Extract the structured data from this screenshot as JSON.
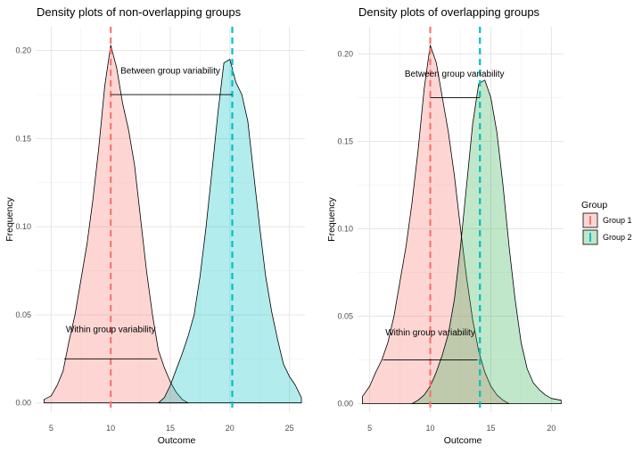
{
  "chart_data": [
    {
      "type": "area",
      "title": "Density plots of non-overlapping groups",
      "xlabel": "Outcome",
      "ylabel": "Frequency",
      "xlim": [
        3.7,
        26.3
      ],
      "ylim": [
        -0.0052,
        0.2135
      ],
      "xticks": [
        5,
        10,
        15,
        20,
        25
      ],
      "yticks": [
        0.0,
        0.05,
        0.1,
        0.15,
        0.2
      ],
      "ytick_labels": [
        "0.00",
        "0.05",
        "0.10",
        "0.15",
        "0.20"
      ],
      "xtick_labels": [
        "5",
        "10",
        "15",
        "20",
        "25"
      ],
      "grid": true,
      "series": [
        {
          "name": "Group 1",
          "color": "#F8766D",
          "points": [
            [
              4.4,
              0.002
            ],
            [
              5.0,
              0.004
            ],
            [
              5.5,
              0.01
            ],
            [
              6.0,
              0.018
            ],
            [
              6.5,
              0.035
            ],
            [
              7.0,
              0.05
            ],
            [
              7.5,
              0.07
            ],
            [
              8.0,
              0.09
            ],
            [
              8.5,
              0.115
            ],
            [
              9.0,
              0.145
            ],
            [
              9.5,
              0.18
            ],
            [
              10.0,
              0.203
            ],
            [
              10.5,
              0.19
            ],
            [
              11.0,
              0.17
            ],
            [
              11.5,
              0.155
            ],
            [
              12.0,
              0.135
            ],
            [
              12.5,
              0.105
            ],
            [
              13.0,
              0.075
            ],
            [
              13.5,
              0.05
            ],
            [
              14.0,
              0.03
            ],
            [
              14.5,
              0.02
            ],
            [
              15.0,
              0.012
            ],
            [
              15.5,
              0.006
            ],
            [
              16.0,
              0.002
            ],
            [
              16.5,
              0.0
            ]
          ]
        },
        {
          "name": "Group 2",
          "color": "#00BFC4",
          "points": [
            [
              14.0,
              0.0
            ],
            [
              14.5,
              0.003
            ],
            [
              15.0,
              0.01
            ],
            [
              15.5,
              0.019
            ],
            [
              16.0,
              0.028
            ],
            [
              16.5,
              0.038
            ],
            [
              17.0,
              0.05
            ],
            [
              17.5,
              0.072
            ],
            [
              18.0,
              0.1
            ],
            [
              18.5,
              0.132
            ],
            [
              19.0,
              0.165
            ],
            [
              19.5,
              0.193
            ],
            [
              20.0,
              0.195
            ],
            [
              20.5,
              0.182
            ],
            [
              21.0,
              0.175
            ],
            [
              21.5,
              0.16
            ],
            [
              22.0,
              0.13
            ],
            [
              22.5,
              0.1
            ],
            [
              23.0,
              0.072
            ],
            [
              23.5,
              0.052
            ],
            [
              24.0,
              0.036
            ],
            [
              24.5,
              0.022
            ],
            [
              25.0,
              0.015
            ],
            [
              25.5,
              0.01
            ],
            [
              26.0,
              0.003
            ]
          ]
        }
      ],
      "vlines": [
        {
          "x": 10.0,
          "color": "#F8766D"
        },
        {
          "x": 20.2,
          "color": "#00BFC4"
        }
      ],
      "segments": [
        {
          "x1": 10.0,
          "x2": 20.2,
          "y": 0.175
        },
        {
          "x1": 6.1,
          "x2": 13.9,
          "y": 0.025
        }
      ],
      "annotations": [
        {
          "text": "Between group variability",
          "x": 15.0,
          "y": 0.187
        },
        {
          "text": "Within group variability",
          "x": 10.0,
          "y": 0.04
        }
      ]
    },
    {
      "type": "area",
      "title": "Density plots of overlapping groups",
      "xlabel": "Outcome",
      "ylabel": "Frequency",
      "xlim": [
        4.0,
        21.0
      ],
      "ylim": [
        -0.0048,
        0.2155
      ],
      "xticks": [
        5,
        10,
        15,
        20
      ],
      "yticks": [
        0.0,
        0.05,
        0.1,
        0.15,
        0.2
      ],
      "ytick_labels": [
        "0.00",
        "0.05",
        "0.10",
        "0.15",
        "0.20"
      ],
      "xtick_labels": [
        "5",
        "10",
        "15",
        "20"
      ],
      "grid": true,
      "series": [
        {
          "name": "Group 1",
          "color": "#F8766D",
          "points": [
            [
              4.4,
              0.004
            ],
            [
              5.0,
              0.01
            ],
            [
              5.5,
              0.018
            ],
            [
              6.0,
              0.025
            ],
            [
              6.5,
              0.035
            ],
            [
              7.0,
              0.05
            ],
            [
              7.5,
              0.07
            ],
            [
              8.0,
              0.09
            ],
            [
              8.5,
              0.115
            ],
            [
              9.0,
              0.145
            ],
            [
              9.5,
              0.18
            ],
            [
              10.0,
              0.205
            ],
            [
              10.5,
              0.195
            ],
            [
              11.0,
              0.175
            ],
            [
              11.5,
              0.155
            ],
            [
              12.0,
              0.13
            ],
            [
              12.5,
              0.1
            ],
            [
              13.0,
              0.072
            ],
            [
              13.5,
              0.048
            ],
            [
              14.0,
              0.03
            ],
            [
              14.5,
              0.018
            ],
            [
              15.0,
              0.01
            ],
            [
              15.5,
              0.005
            ],
            [
              16.0,
              0.002
            ],
            [
              16.5,
              0.0
            ]
          ]
        },
        {
          "name": "Group 2",
          "color": "#2FB14F",
          "points": [
            [
              8.5,
              0.0
            ],
            [
              9.0,
              0.002
            ],
            [
              9.5,
              0.005
            ],
            [
              10.0,
              0.01
            ],
            [
              10.5,
              0.018
            ],
            [
              11.0,
              0.028
            ],
            [
              11.5,
              0.04
            ],
            [
              12.0,
              0.06
            ],
            [
              12.5,
              0.09
            ],
            [
              13.0,
              0.125
            ],
            [
              13.5,
              0.16
            ],
            [
              14.0,
              0.183
            ],
            [
              14.5,
              0.185
            ],
            [
              15.0,
              0.175
            ],
            [
              15.5,
              0.155
            ],
            [
              16.0,
              0.125
            ],
            [
              16.5,
              0.09
            ],
            [
              17.0,
              0.06
            ],
            [
              17.5,
              0.035
            ],
            [
              18.0,
              0.02
            ],
            [
              18.5,
              0.012
            ],
            [
              19.0,
              0.008
            ],
            [
              19.5,
              0.005
            ],
            [
              20.0,
              0.003
            ],
            [
              20.8,
              0.002
            ]
          ]
        }
      ],
      "vlines": [
        {
          "x": 10.0,
          "color": "#F8766D"
        },
        {
          "x": 14.1,
          "color": "#00BFC4"
        }
      ],
      "segments": [
        {
          "x1": 10.0,
          "x2": 14.1,
          "y": 0.175
        },
        {
          "x1": 6.1,
          "x2": 13.9,
          "y": 0.025
        }
      ],
      "annotations": [
        {
          "text": "Between group variability",
          "x": 12.0,
          "y": 0.187
        },
        {
          "text": "Within group variability",
          "x": 10.0,
          "y": 0.039
        }
      ]
    }
  ],
  "legend": {
    "title": "Group",
    "placement": "right",
    "items": [
      {
        "label": "Group 1",
        "fill": "#F8766D",
        "line": "#F8766D"
      },
      {
        "label": "Group 2",
        "fill": "#2FB14F",
        "line": "#00BFC4"
      }
    ]
  },
  "style": {
    "grid_color": "#e6e6e6",
    "tick_text_color": "#4d4d4d",
    "outline_color": "#000000",
    "fill_opacity": 0.3
  }
}
